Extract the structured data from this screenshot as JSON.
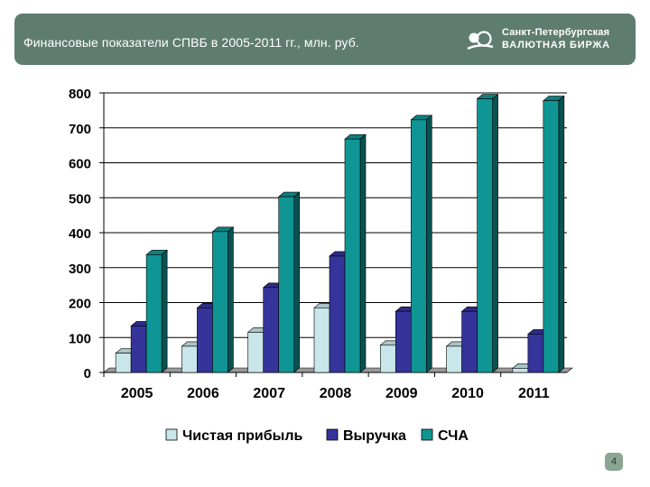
{
  "header": {
    "title": "Финансовые показатели СПВБ в 2005-2011 гг., млн. руб.",
    "logo_line1": "Санкт-Петербургская",
    "logo_line2": "ВАЛЮТНАЯ БИРЖА"
  },
  "page_number": "4",
  "colors": {
    "header_bg": "#5f7d6f",
    "net_profit": "#c9e6ea",
    "revenue": "#35349a",
    "nav": "#0f9593"
  },
  "chart_data": {
    "type": "bar",
    "categories": [
      "2005",
      "2006",
      "2007",
      "2008",
      "2009",
      "2010",
      "2011"
    ],
    "series": [
      {
        "name": "Чистая прибыль",
        "values": [
          55,
          75,
          115,
          185,
          78,
          75,
          12
        ]
      },
      {
        "name": "Выручка",
        "values": [
          133,
          185,
          243,
          333,
          175,
          175,
          110
        ]
      },
      {
        "name": "СЧА",
        "values": [
          337,
          403,
          503,
          668,
          723,
          783,
          778
        ]
      }
    ],
    "ylim": [
      0,
      800
    ],
    "yticks": [
      "0",
      "100",
      "200",
      "300",
      "400",
      "500",
      "600",
      "700",
      "800"
    ],
    "grid": true,
    "legend_position": "bottom"
  }
}
